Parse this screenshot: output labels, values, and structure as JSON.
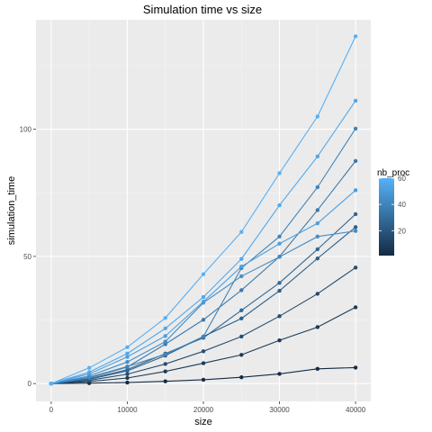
{
  "chart_data": {
    "type": "line",
    "title": "Simulation time vs size",
    "xlabel": "size",
    "ylabel": "simulation_time",
    "xlim": [
      -2000,
      42000
    ],
    "ylim": [
      -7,
      143
    ],
    "xticks": [
      0,
      10000,
      20000,
      30000,
      40000
    ],
    "xtick_labels": [
      "0",
      "10000",
      "20000",
      "30000",
      "40000"
    ],
    "yticks": [
      0,
      50,
      100
    ],
    "ytick_labels": [
      "0",
      "50",
      "100"
    ],
    "grid": true,
    "legend": {
      "title": "nb_proc",
      "placement": "right",
      "min": 1,
      "max": 60,
      "ticks": [
        20,
        40,
        60
      ],
      "tick_labels": [
        "20",
        "40",
        "60"
      ],
      "color_low": "#132B43",
      "color_high": "#56B1F7"
    },
    "x": [
      0,
      5000,
      10000,
      15000,
      20000,
      25000,
      30000,
      35000,
      40000
    ],
    "series": [
      {
        "nb_proc": 1,
        "values": [
          0,
          0.2,
          0.4,
          0.9,
          1.5,
          2.5,
          3.8,
          5.8,
          6.3
        ]
      },
      {
        "nb_proc": 8,
        "values": [
          0,
          0.8,
          2.2,
          4.8,
          8,
          11.3,
          17,
          22.2,
          30
        ]
      },
      {
        "nb_proc": 16,
        "values": [
          0,
          1.3,
          3.7,
          7.7,
          12.7,
          18.5,
          26.5,
          35.3,
          45.6
        ]
      },
      {
        "nb_proc": 24,
        "values": [
          0,
          1.7,
          5,
          11,
          18.5,
          25.6,
          36.5,
          49.2,
          61.5
        ]
      },
      {
        "nb_proc": 28,
        "values": [
          0,
          1.9,
          5.5,
          11.8,
          18,
          28.8,
          39.6,
          52.8,
          66.6
        ]
      },
      {
        "nb_proc": 36,
        "values": [
          0,
          2.3,
          6.5,
          15.5,
          25.1,
          36.7,
          49.9,
          68.2,
          87.5
        ]
      },
      {
        "nb_proc": 40,
        "values": [
          0,
          2.5,
          6.7,
          11.5,
          18.5,
          45.4,
          57.8,
          77.2,
          100.2
        ]
      },
      {
        "nb_proc": 44,
        "values": [
          0,
          3,
          8.5,
          16.5,
          31.8,
          42.2,
          49.8,
          57.8,
          60
        ]
      },
      {
        "nb_proc": 52,
        "values": [
          0,
          3.8,
          10.5,
          18.7,
          32.2,
          46,
          55,
          63,
          76
        ]
      },
      {
        "nb_proc": 56,
        "values": [
          0,
          4.5,
          11.8,
          21.7,
          34,
          49,
          70.1,
          89.3,
          111.2
        ]
      },
      {
        "nb_proc": 60,
        "values": [
          0,
          6.2,
          14.3,
          25.8,
          43,
          59.6,
          82.7,
          105,
          136.5
        ]
      }
    ]
  }
}
